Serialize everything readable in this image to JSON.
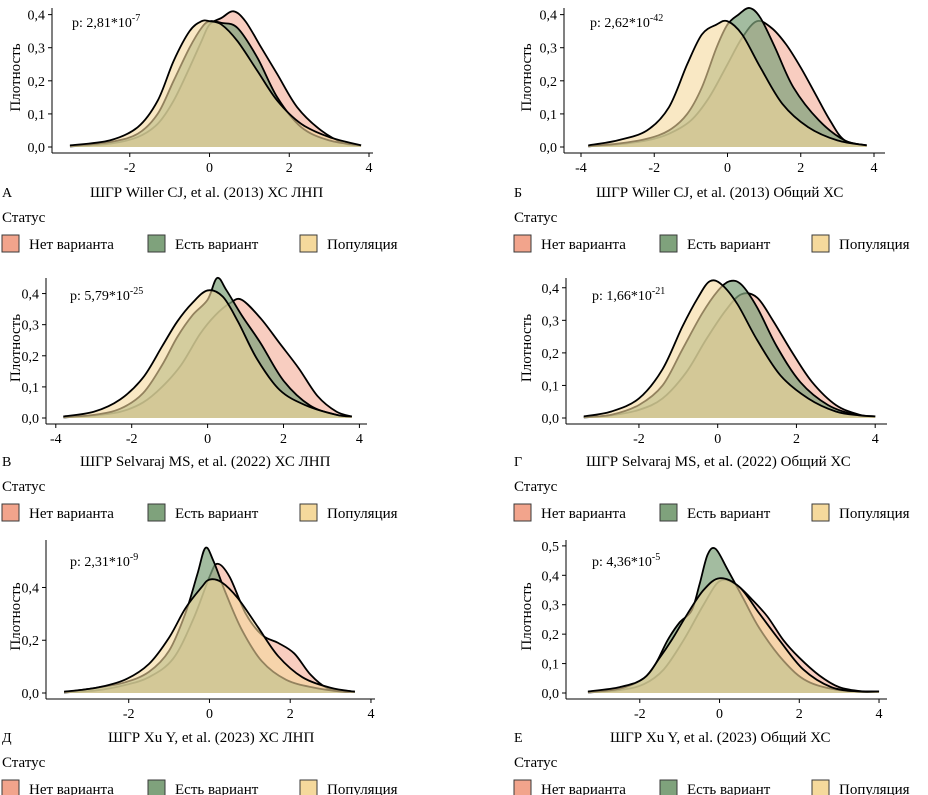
{
  "legend": {
    "title": "Статус",
    "items": [
      {
        "label": "Нет варианта",
        "color": "#f2a48c"
      },
      {
        "label": "Есть вариант",
        "color": "#7fa27c"
      },
      {
        "label": "Популяция",
        "color": "#f5d99c"
      }
    ]
  },
  "y_label": "Плотность",
  "chart_data": [
    {
      "type": "area",
      "panel": "А",
      "p_base": "p: 2,81*10",
      "p_exp": "-7",
      "xlabel": "ШГР Willer CJ, et al. (2013) ХС ЛНП",
      "ylabel": "Плотность",
      "xlim": [
        -3.8,
        4.1
      ],
      "ylim": [
        0,
        0.42
      ],
      "xticks": [
        -2,
        0,
        2,
        4
      ],
      "xtick_labels": [
        "-2",
        "0",
        "2",
        "4"
      ],
      "yticks": [
        0,
        0.1,
        0.2,
        0.3,
        0.4
      ],
      "ytick_labels": [
        "0,0",
        "0,1",
        "0,2",
        "0,3",
        "0,4"
      ],
      "series": [
        {
          "name": "Популяция",
          "x": [
            -3.5,
            -2.5,
            -1.8,
            -1.3,
            -0.9,
            -0.5,
            -0.2,
            0,
            0.3,
            0.7,
            1.2,
            1.7,
            2.3,
            3.0,
            3.8
          ],
          "values": [
            0.005,
            0.02,
            0.06,
            0.14,
            0.26,
            0.35,
            0.38,
            0.38,
            0.37,
            0.32,
            0.23,
            0.14,
            0.07,
            0.03,
            0.005
          ]
        },
        {
          "name": "Есть вариант",
          "x": [
            -3.5,
            -2.5,
            -1.8,
            -1.3,
            -0.9,
            -0.5,
            -0.2,
            0,
            0.3,
            0.7,
            1.2,
            1.7,
            2.3,
            3.0,
            3.8
          ],
          "values": [
            0.003,
            0.015,
            0.04,
            0.1,
            0.2,
            0.3,
            0.36,
            0.38,
            0.375,
            0.36,
            0.27,
            0.15,
            0.06,
            0.02,
            0.005
          ]
        },
        {
          "name": "Нет варианта",
          "x": [
            -3.5,
            -2.5,
            -1.8,
            -1.3,
            -0.9,
            -0.5,
            -0.2,
            0,
            0.3,
            0.6,
            0.9,
            1.3,
            1.7,
            2.2,
            2.8,
            3.4,
            3.8
          ],
          "values": [
            0.002,
            0.01,
            0.03,
            0.07,
            0.14,
            0.24,
            0.32,
            0.37,
            0.39,
            0.41,
            0.38,
            0.3,
            0.22,
            0.12,
            0.05,
            0.01,
            0.005
          ]
        }
      ]
    },
    {
      "type": "area",
      "panel": "Б",
      "p_base": "p: 2,62*10",
      "p_exp": "-42",
      "xlabel": "ШГР Willer CJ, et al. (2013)  Общий ХС",
      "ylabel": "Плотность",
      "xlim": [
        -4.3,
        4.3
      ],
      "ylim": [
        0,
        0.42
      ],
      "xticks": [
        -4,
        -2,
        0,
        2,
        4
      ],
      "xtick_labels": [
        "-4",
        "-2",
        "0",
        "2",
        "4"
      ],
      "yticks": [
        0,
        0.1,
        0.2,
        0.3,
        0.4
      ],
      "ytick_labels": [
        "0,0",
        "0,1",
        "0,2",
        "0,3",
        "0,4"
      ],
      "series": [
        {
          "name": "Популяция",
          "x": [
            -3.8,
            -3.0,
            -2.2,
            -1.6,
            -1.1,
            -0.7,
            -0.3,
            0,
            0.4,
            0.9,
            1.5,
            2.2,
            3.0,
            3.8
          ],
          "values": [
            0.005,
            0.02,
            0.05,
            0.12,
            0.25,
            0.34,
            0.37,
            0.38,
            0.34,
            0.24,
            0.13,
            0.06,
            0.02,
            0.005
          ]
        },
        {
          "name": "Есть вариант",
          "x": [
            -3.8,
            -3.0,
            -2.2,
            -1.6,
            -1.1,
            -0.7,
            -0.3,
            0,
            0.3,
            0.6,
            0.9,
            1.3,
            1.8,
            2.5,
            3.2,
            3.8
          ],
          "values": [
            0.003,
            0.01,
            0.025,
            0.05,
            0.1,
            0.18,
            0.3,
            0.37,
            0.4,
            0.42,
            0.39,
            0.3,
            0.18,
            0.08,
            0.02,
            0.005
          ]
        },
        {
          "name": "Нет варианта",
          "x": [
            -3.8,
            -3.0,
            -2.2,
            -1.6,
            -1.0,
            -0.5,
            0,
            0.4,
            0.8,
            1.2,
            1.6,
            2.0,
            2.4,
            2.8,
            3.2,
            3.8
          ],
          "values": [
            0.002,
            0.008,
            0.02,
            0.04,
            0.08,
            0.15,
            0.25,
            0.33,
            0.38,
            0.36,
            0.31,
            0.24,
            0.16,
            0.08,
            0.02,
            0.005
          ]
        }
      ]
    },
    {
      "type": "area",
      "panel": "В",
      "p_base": "p: 5,79*10",
      "p_exp": "-25",
      "xlabel": "ШГР Selvaraj MS, et al. (2022) ХС ЛНП",
      "ylabel": "Плотность",
      "xlim": [
        -4.1,
        4.2
      ],
      "ylim": [
        0,
        0.45
      ],
      "xticks": [
        -4,
        -2,
        0,
        2,
        4
      ],
      "xtick_labels": [
        "-4",
        "-2",
        "0",
        "2",
        "4"
      ],
      "yticks": [
        0,
        0.1,
        0.2,
        0.3,
        0.4
      ],
      "ytick_labels": [
        "0,0",
        "0,1",
        "0,2",
        "0,3",
        "0,4"
      ],
      "series": [
        {
          "name": "Популяция",
          "x": [
            -3.8,
            -3.0,
            -2.3,
            -1.7,
            -1.2,
            -0.8,
            -0.4,
            0,
            0.4,
            0.8,
            1.3,
            1.9,
            2.6,
            3.4,
            3.8
          ],
          "values": [
            0.005,
            0.02,
            0.06,
            0.13,
            0.23,
            0.31,
            0.37,
            0.41,
            0.39,
            0.31,
            0.19,
            0.09,
            0.04,
            0.01,
            0.005
          ]
        },
        {
          "name": "Есть вариант",
          "x": [
            -3.8,
            -3.0,
            -2.3,
            -1.7,
            -1.2,
            -0.8,
            -0.4,
            0,
            0.25,
            0.5,
            0.9,
            1.4,
            2.0,
            2.7,
            3.4,
            3.8
          ],
          "values": [
            0.003,
            0.01,
            0.03,
            0.08,
            0.17,
            0.26,
            0.33,
            0.38,
            0.45,
            0.41,
            0.33,
            0.24,
            0.12,
            0.04,
            0.01,
            0.005
          ]
        },
        {
          "name": "Нет варианта",
          "x": [
            -3.8,
            -3.0,
            -2.3,
            -1.7,
            -1.2,
            -0.7,
            -0.2,
            0.2,
            0.6,
            0.9,
            1.4,
            1.9,
            2.4,
            2.9,
            3.4,
            3.8
          ],
          "values": [
            0.002,
            0.008,
            0.02,
            0.05,
            0.1,
            0.17,
            0.27,
            0.33,
            0.37,
            0.38,
            0.32,
            0.24,
            0.16,
            0.07,
            0.02,
            0.005
          ]
        }
      ]
    },
    {
      "type": "area",
      "panel": "Г",
      "p_base": "p: 1,66*10",
      "p_exp": "-21",
      "xlabel": "ШГР Selvaraj MS, et al. (2022)  Общий ХС",
      "ylabel": "Плотность",
      "xlim": [
        -3.7,
        4.3
      ],
      "ylim": [
        0,
        0.43
      ],
      "xticks": [
        -2,
        0,
        2,
        4
      ],
      "xtick_labels": [
        "-2",
        "0",
        "2",
        "4"
      ],
      "yticks": [
        0,
        0.1,
        0.2,
        0.3,
        0.4
      ],
      "ytick_labels": [
        "0,0",
        "0,1",
        "0,2",
        "0,3",
        "0,4"
      ],
      "series": [
        {
          "name": "Популяция",
          "x": [
            -3.4,
            -2.7,
            -2.0,
            -1.4,
            -0.9,
            -0.5,
            -0.2,
            0.1,
            0.5,
            1.0,
            1.6,
            2.3,
            3.0,
            3.6,
            4.0
          ],
          "values": [
            0.005,
            0.02,
            0.06,
            0.15,
            0.28,
            0.37,
            0.42,
            0.41,
            0.35,
            0.24,
            0.13,
            0.06,
            0.02,
            0.008,
            0.005
          ]
        },
        {
          "name": "Есть вариант",
          "x": [
            -3.4,
            -2.7,
            -2.0,
            -1.4,
            -0.9,
            -0.4,
            0,
            0.3,
            0.6,
            1.0,
            1.5,
            2.1,
            2.8,
            3.5,
            4.0
          ],
          "values": [
            0.003,
            0.01,
            0.04,
            0.1,
            0.21,
            0.32,
            0.39,
            0.42,
            0.41,
            0.34,
            0.22,
            0.11,
            0.04,
            0.01,
            0.005
          ]
        },
        {
          "name": "Нет варианта",
          "x": [
            -3.4,
            -2.7,
            -2.0,
            -1.4,
            -0.8,
            -0.3,
            0.2,
            0.6,
            1.0,
            1.4,
            1.9,
            2.4,
            3.0,
            3.6,
            4.0
          ],
          "values": [
            0.002,
            0.008,
            0.025,
            0.06,
            0.14,
            0.24,
            0.33,
            0.38,
            0.37,
            0.3,
            0.2,
            0.11,
            0.04,
            0.01,
            0.005
          ]
        }
      ]
    },
    {
      "type": "area",
      "panel": "Д",
      "p_base": "p: 2,31*10",
      "p_exp": "-9",
      "xlabel": "ШГР Xu Y, et al. (2023) ХС ЛНП",
      "ylabel": "Плотность",
      "xlim": [
        -3.9,
        4.1
      ],
      "ylim": [
        0,
        0.58
      ],
      "xticks": [
        -2,
        0,
        2,
        4
      ],
      "xtick_labels": [
        "-2",
        "0",
        "2",
        "4"
      ],
      "yticks": [
        0,
        0.2,
        0.4
      ],
      "ytick_labels": [
        "0,0",
        "0,2",
        "0,4"
      ],
      "series": [
        {
          "name": "Популяция",
          "x": [
            -3.6,
            -2.8,
            -2.1,
            -1.5,
            -1.0,
            -0.6,
            -0.2,
            0,
            0.3,
            0.7,
            1.2,
            1.7,
            2.3,
            3.0,
            3.6
          ],
          "values": [
            0.005,
            0.02,
            0.05,
            0.11,
            0.21,
            0.32,
            0.4,
            0.43,
            0.42,
            0.36,
            0.25,
            0.14,
            0.06,
            0.02,
            0.005
          ]
        },
        {
          "name": "Есть вариант",
          "x": [
            -3.6,
            -2.8,
            -2.1,
            -1.5,
            -1.0,
            -0.6,
            -0.3,
            -0.1,
            0.1,
            0.4,
            0.8,
            1.3,
            1.9,
            2.6,
            3.3,
            3.6
          ],
          "values": [
            0.003,
            0.02,
            0.04,
            0.08,
            0.16,
            0.3,
            0.45,
            0.55,
            0.5,
            0.38,
            0.24,
            0.12,
            0.05,
            0.02,
            0.005,
            0.005
          ]
        },
        {
          "name": "Нет варианта",
          "x": [
            -3.6,
            -2.8,
            -2.1,
            -1.5,
            -0.9,
            -0.4,
            0,
            0.2,
            0.5,
            0.9,
            1.3,
            1.7,
            2.1,
            2.5,
            2.9,
            3.3,
            3.6
          ],
          "values": [
            0.002,
            0.01,
            0.03,
            0.06,
            0.13,
            0.28,
            0.44,
            0.49,
            0.44,
            0.3,
            0.22,
            0.19,
            0.15,
            0.07,
            0.02,
            0.01,
            0.005
          ]
        }
      ]
    },
    {
      "type": "area",
      "panel": "Е",
      "p_base": "p: 4,36*10",
      "p_exp": "-5",
      "xlabel": "ШГР Xu Y, et al. (2023)  Общий ХС",
      "ylabel": "Плотность",
      "xlim": [
        -3.7,
        4.2
      ],
      "ylim": [
        0,
        0.52
      ],
      "xticks": [
        -2,
        0,
        2,
        4
      ],
      "xtick_labels": [
        "-2",
        "0",
        "2",
        "4"
      ],
      "yticks": [
        0,
        0.1,
        0.2,
        0.3,
        0.4,
        0.5
      ],
      "ytick_labels": [
        "0,0",
        "0,1",
        "0,2",
        "0,3",
        "0,4",
        "0,5"
      ],
      "series": [
        {
          "name": "Популяция",
          "x": [
            -3.3,
            -2.5,
            -1.9,
            -1.5,
            -1.2,
            -0.8,
            -0.4,
            0,
            0.5,
            1.0,
            1.5,
            2.1,
            2.8,
            3.5,
            4.0
          ],
          "values": [
            0.005,
            0.02,
            0.05,
            0.12,
            0.18,
            0.27,
            0.35,
            0.39,
            0.36,
            0.27,
            0.18,
            0.08,
            0.02,
            0.005,
            0.005
          ]
        },
        {
          "name": "Есть вариант",
          "x": [
            -3.3,
            -2.5,
            -1.9,
            -1.6,
            -1.3,
            -1.0,
            -0.7,
            -0.5,
            -0.3,
            -0.1,
            0.2,
            0.6,
            1.0,
            1.6,
            2.2,
            3.0,
            4.0
          ],
          "values": [
            0.003,
            0.015,
            0.05,
            0.1,
            0.18,
            0.24,
            0.28,
            0.37,
            0.47,
            0.49,
            0.42,
            0.32,
            0.22,
            0.11,
            0.04,
            0.01,
            0.005
          ]
        },
        {
          "name": "Нет варианта",
          "x": [
            -3.3,
            -2.5,
            -1.9,
            -1.4,
            -0.9,
            -0.4,
            0,
            0.4,
            0.8,
            1.2,
            1.6,
            2.0,
            2.5,
            3.0,
            3.6,
            4.0
          ],
          "values": [
            0.002,
            0.01,
            0.03,
            0.08,
            0.18,
            0.3,
            0.38,
            0.37,
            0.32,
            0.26,
            0.18,
            0.12,
            0.06,
            0.02,
            0.005,
            0.005
          ]
        }
      ]
    }
  ]
}
